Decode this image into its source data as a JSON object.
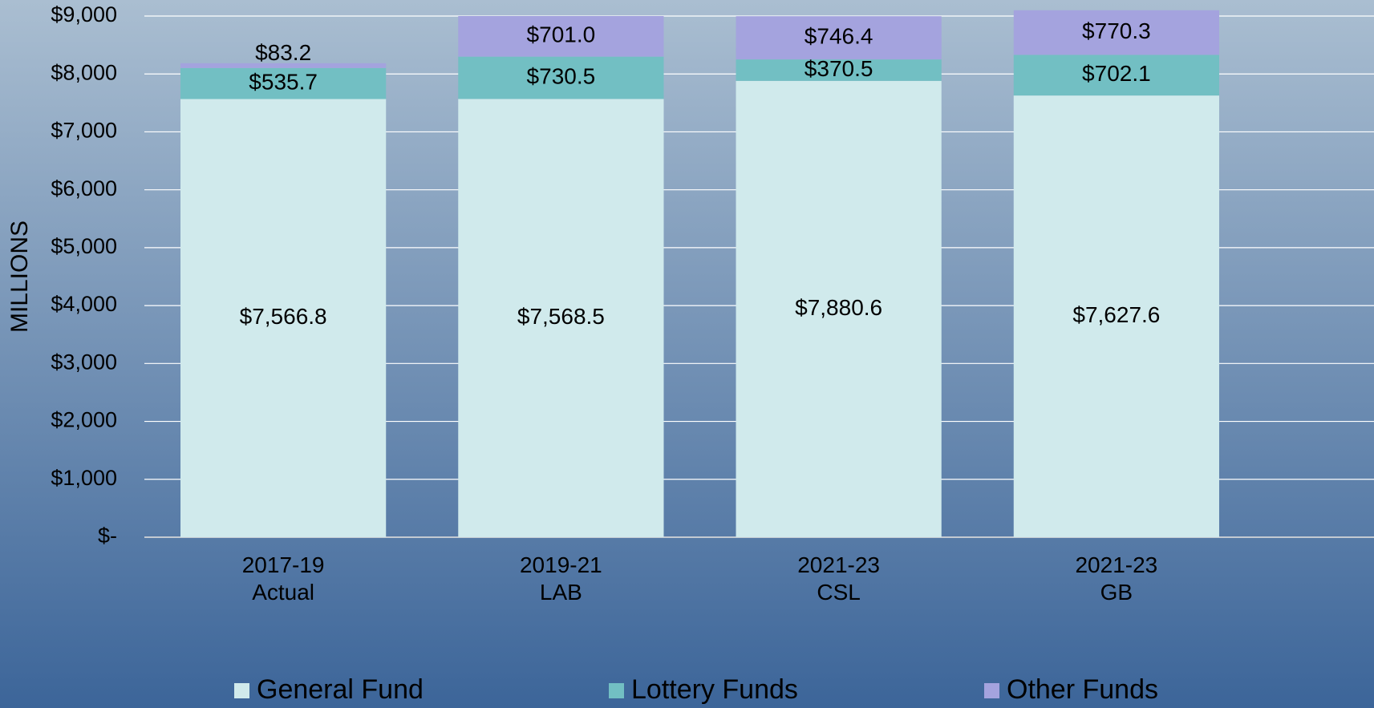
{
  "chart_data": {
    "type": "stacked_bar",
    "ylabel": "MILLIONS",
    "categories": [
      "2017-19\nActual",
      "2019-21\nLAB",
      "2021-23\nCSL",
      "2021-23\nGB"
    ],
    "series": [
      {
        "name": "General Fund",
        "color": "#d0eaec",
        "values": [
          7566.8,
          7568.5,
          7880.6,
          7627.6
        ],
        "value_labels": [
          "$7,566.8",
          "$7,568.5",
          "$7,880.6",
          "$7,627.6"
        ]
      },
      {
        "name": "Lottery Funds",
        "color": "#72bfc3",
        "values": [
          535.7,
          730.5,
          370.5,
          702.1
        ],
        "value_labels": [
          "$535.7",
          "$730.5",
          "$370.5",
          "$702.1"
        ]
      },
      {
        "name": "Other Funds",
        "color": "#a4a3de",
        "values": [
          83.2,
          701.0,
          746.4,
          770.3
        ],
        "value_labels": [
          "$83.2",
          "$701.0",
          "$746.4",
          "$770.3"
        ]
      }
    ],
    "ylim": [
      0,
      9000
    ],
    "yticks": [
      {
        "value": 0,
        "label": "$-"
      },
      {
        "value": 1000,
        "label": "$1,000"
      },
      {
        "value": 2000,
        "label": "$2,000"
      },
      {
        "value": 3000,
        "label": "$3,000"
      },
      {
        "value": 4000,
        "label": "$4,000"
      },
      {
        "value": 5000,
        "label": "$5,000"
      },
      {
        "value": 6000,
        "label": "$6,000"
      },
      {
        "value": 7000,
        "label": "$7,000"
      },
      {
        "value": 8000,
        "label": "$8,000"
      },
      {
        "value": 9000,
        "label": "$9,000"
      }
    ],
    "grid": true,
    "legend": "bottom"
  }
}
